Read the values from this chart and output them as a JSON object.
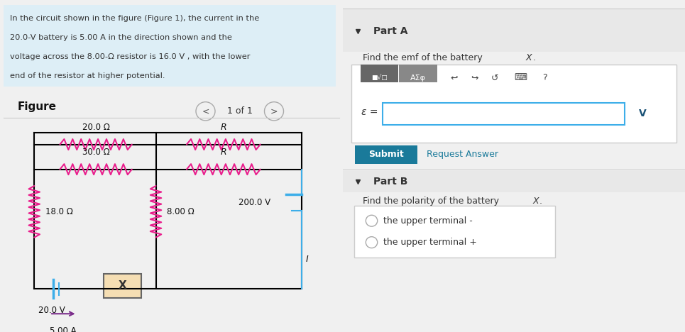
{
  "bg_color_left": "#e8f4f8",
  "bg_color_right": "#f0f0f0",
  "text_color_main": "#333333",
  "resistor_color": "#e91e8c",
  "battery_color": "#3daee9",
  "wire_color": "#000000",
  "arrow_color": "#7b2d8b",
  "problem_text_lines": [
    "In the circuit shown in the figure (Figure 1), the current in the",
    "20.0-V battery is 5.00 A in the direction shown and the",
    "voltage across the 8.00-Ω resistor is 16.0 V , with the lower",
    "end of the resistor at higher potential."
  ],
  "figure_label": "Figure",
  "nav_text": "1 of 1",
  "part_a_label": "Part A",
  "emf_label": "ε =",
  "unit_v": "V",
  "submit_text": "Submit",
  "request_text": "Request Answer",
  "part_b_label": "Part B",
  "part_b_question_pre": "Find the polarity of the battery ",
  "part_b_question_x": "X",
  "option1": "the upper terminal -",
  "option2": "the upper terminal +",
  "find_emf_pre": "Find the emf of the battery ",
  "find_emf_x": "X"
}
